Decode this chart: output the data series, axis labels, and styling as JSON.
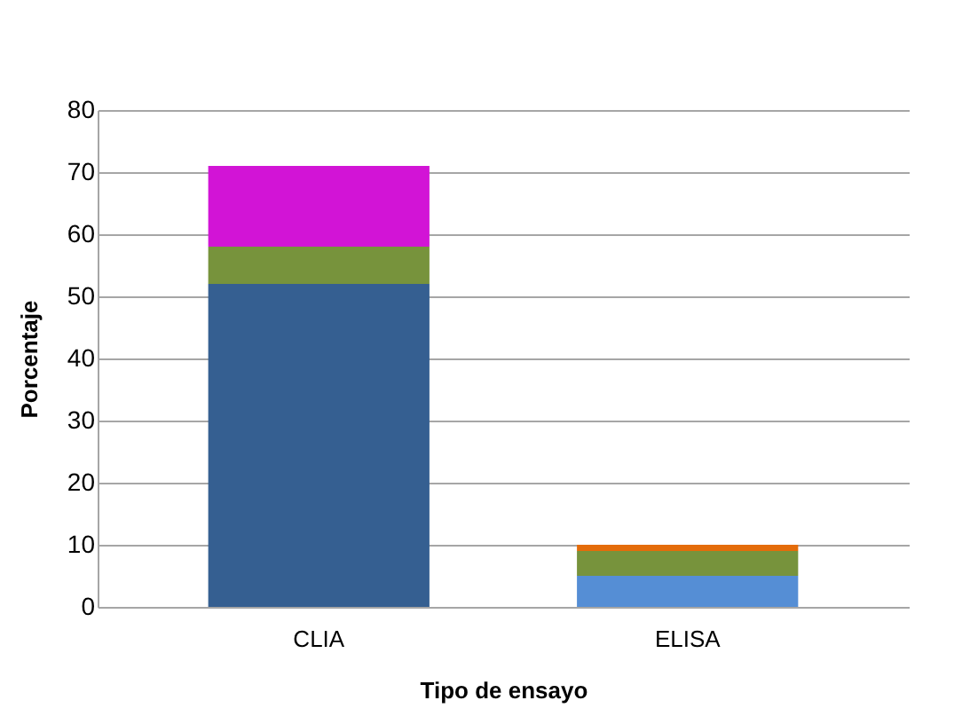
{
  "chart_data": {
    "type": "bar",
    "xlabel": "Tipo de ensayo",
    "ylabel": "Porcentaje",
    "categories": [
      "CLIA",
      "ELISA"
    ],
    "stacked": true,
    "series": [
      {
        "colors": [
          "#355f91",
          "#558ed5"
        ],
        "values": [
          52,
          5
        ]
      },
      {
        "color": "#77933c",
        "values": [
          6,
          4
        ]
      },
      {
        "colors": [
          "#d214d6",
          "#e46c0a"
        ],
        "values": [
          13,
          1
        ]
      }
    ],
    "ylim": [
      0,
      80
    ],
    "yticks": [
      0,
      10,
      20,
      30,
      40,
      50,
      60,
      70,
      80
    ],
    "grid": "y"
  }
}
